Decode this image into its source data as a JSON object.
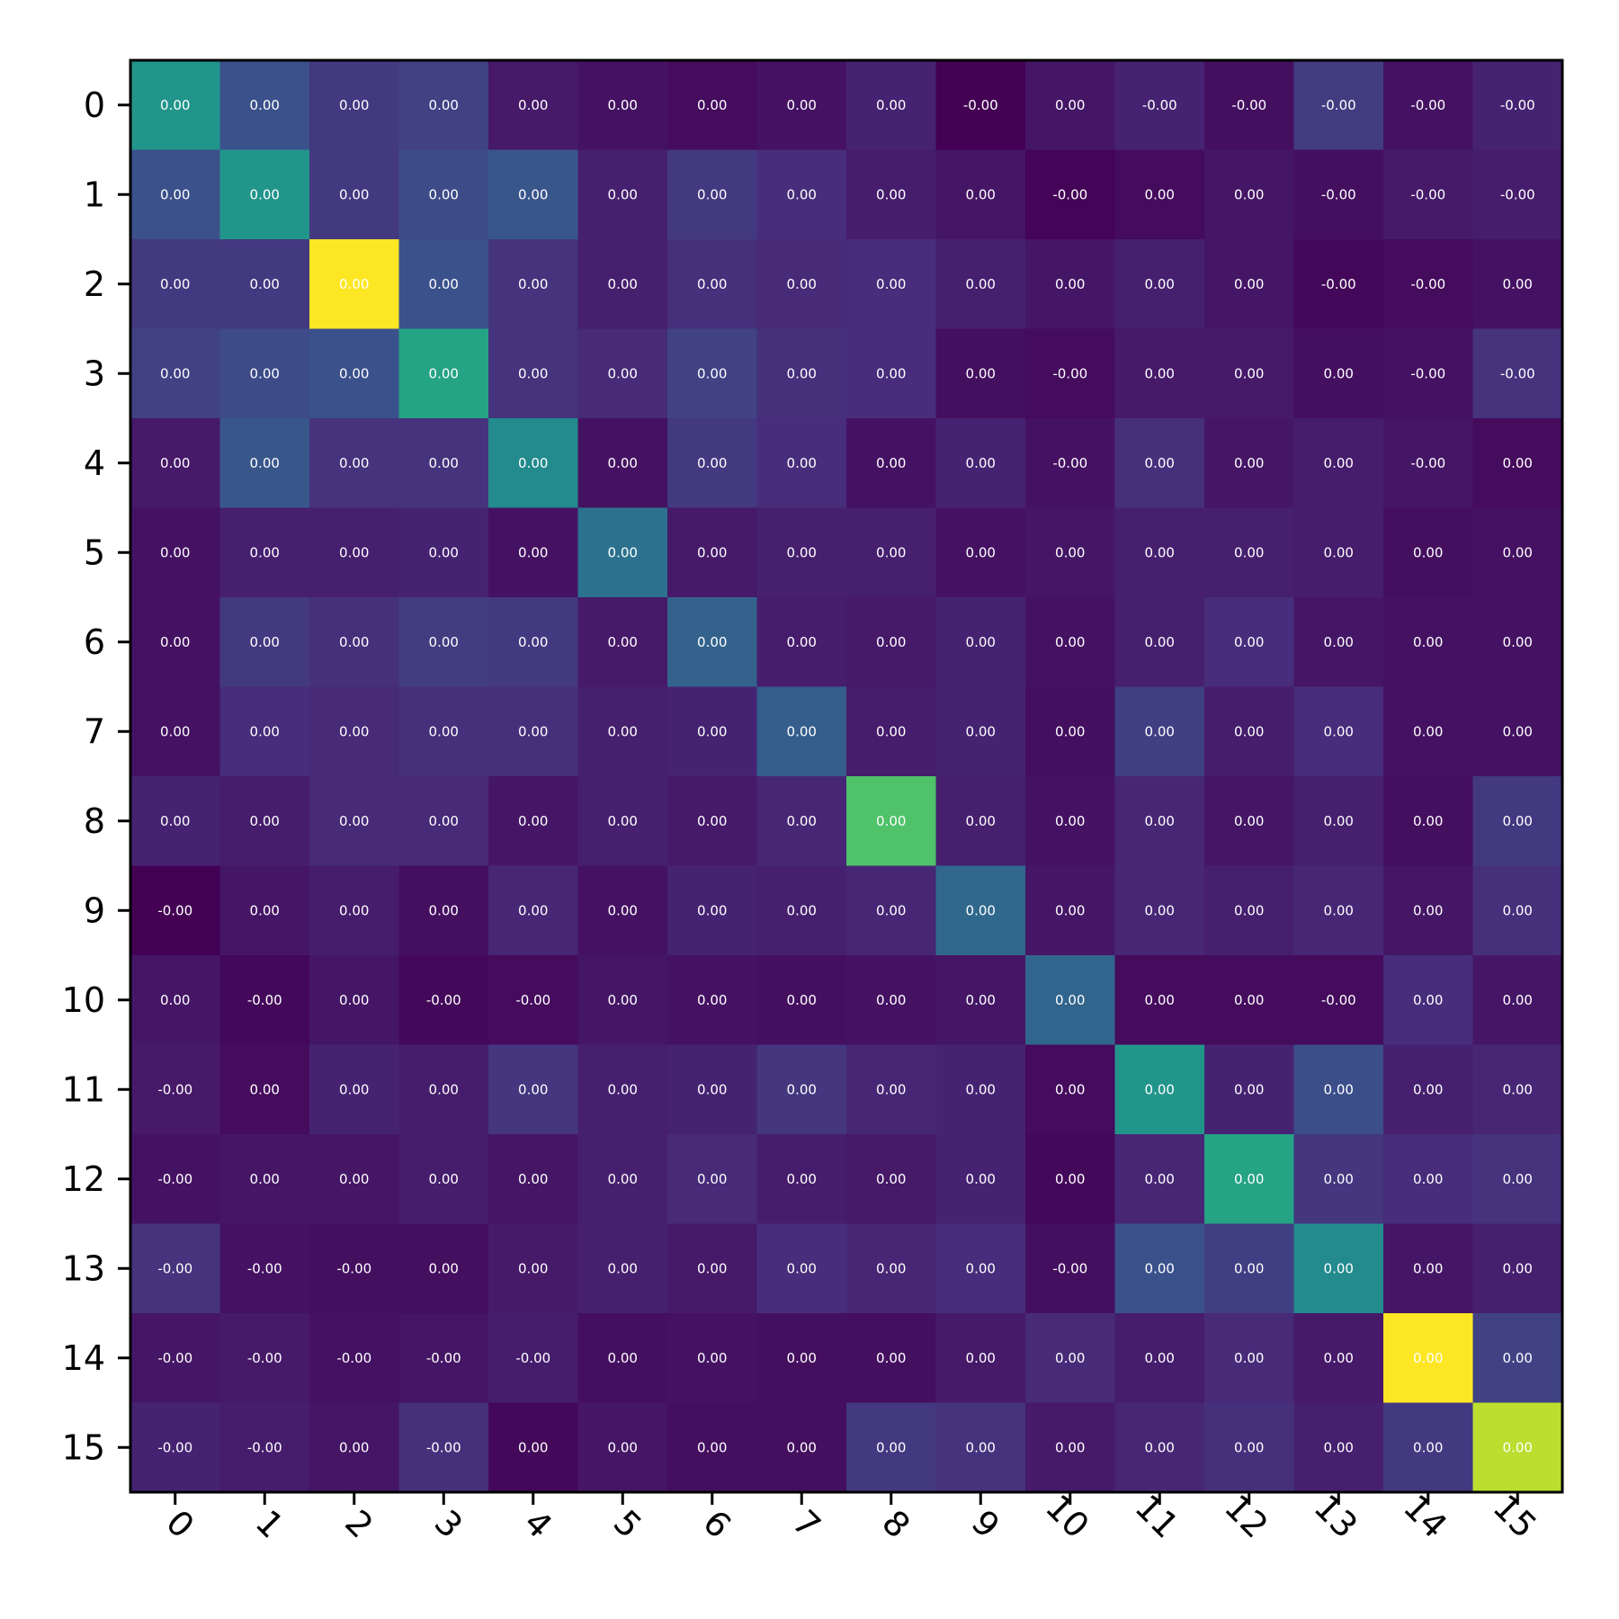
{
  "chart_data": {
    "type": "heatmap",
    "title": "",
    "xlabel": "",
    "ylabel": "",
    "x_ticks": [
      "0",
      "1",
      "2",
      "3",
      "4",
      "5",
      "6",
      "7",
      "8",
      "9",
      "10",
      "11",
      "12",
      "13",
      "14",
      "15"
    ],
    "y_ticks": [
      "0",
      "1",
      "2",
      "3",
      "4",
      "5",
      "6",
      "7",
      "8",
      "9",
      "10",
      "11",
      "12",
      "13",
      "14",
      "15"
    ],
    "x_tick_rotation": 45,
    "colormap": "viridis",
    "color_scale": [
      0,
      1
    ],
    "grid": false,
    "colorbar": false,
    "value_format": "0.00",
    "labels": [
      [
        "0.00",
        "0.00",
        "0.00",
        "0.00",
        "0.00",
        "0.00",
        "0.00",
        "0.00",
        "0.00",
        "-0.00",
        "0.00",
        "-0.00",
        "-0.00",
        "-0.00",
        "-0.00",
        "-0.00"
      ],
      [
        "0.00",
        "0.00",
        "0.00",
        "0.00",
        "0.00",
        "0.00",
        "0.00",
        "0.00",
        "0.00",
        "0.00",
        "-0.00",
        "0.00",
        "0.00",
        "-0.00",
        "-0.00",
        "-0.00"
      ],
      [
        "0.00",
        "0.00",
        "0.00",
        "0.00",
        "0.00",
        "0.00",
        "0.00",
        "0.00",
        "0.00",
        "0.00",
        "0.00",
        "0.00",
        "0.00",
        "-0.00",
        "-0.00",
        "0.00"
      ],
      [
        "0.00",
        "0.00",
        "0.00",
        "0.00",
        "0.00",
        "0.00",
        "0.00",
        "0.00",
        "0.00",
        "0.00",
        "-0.00",
        "0.00",
        "0.00",
        "0.00",
        "-0.00",
        "-0.00"
      ],
      [
        "0.00",
        "0.00",
        "0.00",
        "0.00",
        "0.00",
        "0.00",
        "0.00",
        "0.00",
        "0.00",
        "0.00",
        "-0.00",
        "0.00",
        "0.00",
        "0.00",
        "-0.00",
        "0.00"
      ],
      [
        "0.00",
        "0.00",
        "0.00",
        "0.00",
        "0.00",
        "0.00",
        "0.00",
        "0.00",
        "0.00",
        "0.00",
        "0.00",
        "0.00",
        "0.00",
        "0.00",
        "0.00",
        "0.00"
      ],
      [
        "0.00",
        "0.00",
        "0.00",
        "0.00",
        "0.00",
        "0.00",
        "0.00",
        "0.00",
        "0.00",
        "0.00",
        "0.00",
        "0.00",
        "0.00",
        "0.00",
        "0.00",
        "0.00"
      ],
      [
        "0.00",
        "0.00",
        "0.00",
        "0.00",
        "0.00",
        "0.00",
        "0.00",
        "0.00",
        "0.00",
        "0.00",
        "0.00",
        "0.00",
        "0.00",
        "0.00",
        "0.00",
        "0.00"
      ],
      [
        "0.00",
        "0.00",
        "0.00",
        "0.00",
        "0.00",
        "0.00",
        "0.00",
        "0.00",
        "0.00",
        "0.00",
        "0.00",
        "0.00",
        "0.00",
        "0.00",
        "0.00",
        "0.00"
      ],
      [
        "-0.00",
        "0.00",
        "0.00",
        "0.00",
        "0.00",
        "0.00",
        "0.00",
        "0.00",
        "0.00",
        "0.00",
        "0.00",
        "0.00",
        "0.00",
        "0.00",
        "0.00",
        "0.00"
      ],
      [
        "0.00",
        "-0.00",
        "0.00",
        "-0.00",
        "-0.00",
        "0.00",
        "0.00",
        "0.00",
        "0.00",
        "0.00",
        "0.00",
        "0.00",
        "0.00",
        "-0.00",
        "0.00",
        "0.00"
      ],
      [
        "-0.00",
        "0.00",
        "0.00",
        "0.00",
        "0.00",
        "0.00",
        "0.00",
        "0.00",
        "0.00",
        "0.00",
        "0.00",
        "0.00",
        "0.00",
        "0.00",
        "0.00",
        "0.00"
      ],
      [
        "-0.00",
        "0.00",
        "0.00",
        "0.00",
        "0.00",
        "0.00",
        "0.00",
        "0.00",
        "0.00",
        "0.00",
        "0.00",
        "0.00",
        "0.00",
        "0.00",
        "0.00",
        "0.00"
      ],
      [
        "-0.00",
        "-0.00",
        "-0.00",
        "0.00",
        "0.00",
        "0.00",
        "0.00",
        "0.00",
        "0.00",
        "0.00",
        "-0.00",
        "0.00",
        "0.00",
        "0.00",
        "0.00",
        "0.00"
      ],
      [
        "-0.00",
        "-0.00",
        "-0.00",
        "-0.00",
        "-0.00",
        "0.00",
        "0.00",
        "0.00",
        "0.00",
        "0.00",
        "0.00",
        "0.00",
        "0.00",
        "0.00",
        "0.00",
        "0.00"
      ],
      [
        "-0.00",
        "-0.00",
        "0.00",
        "-0.00",
        "0.00",
        "0.00",
        "0.00",
        "0.00",
        "0.00",
        "0.00",
        "0.00",
        "0.00",
        "0.00",
        "0.00",
        "0.00",
        "0.00"
      ]
    ],
    "values": [
      [
        0.52,
        0.25,
        0.17,
        0.2,
        0.07,
        0.05,
        0.03,
        0.05,
        0.1,
        0.0,
        0.06,
        0.1,
        0.04,
        0.18,
        0.05,
        0.1
      ],
      [
        0.25,
        0.52,
        0.17,
        0.23,
        0.27,
        0.09,
        0.17,
        0.13,
        0.08,
        0.06,
        0.01,
        0.03,
        0.06,
        0.04,
        0.07,
        0.08
      ],
      [
        0.17,
        0.17,
        1.0,
        0.25,
        0.15,
        0.09,
        0.14,
        0.12,
        0.13,
        0.09,
        0.06,
        0.09,
        0.06,
        0.02,
        0.03,
        0.05
      ],
      [
        0.2,
        0.23,
        0.25,
        0.58,
        0.15,
        0.12,
        0.2,
        0.14,
        0.13,
        0.04,
        0.03,
        0.07,
        0.07,
        0.04,
        0.05,
        0.15
      ],
      [
        0.07,
        0.27,
        0.15,
        0.15,
        0.48,
        0.05,
        0.17,
        0.13,
        0.05,
        0.1,
        0.05,
        0.14,
        0.06,
        0.08,
        0.06,
        0.03
      ],
      [
        0.05,
        0.09,
        0.09,
        0.1,
        0.05,
        0.38,
        0.07,
        0.09,
        0.09,
        0.05,
        0.06,
        0.09,
        0.09,
        0.08,
        0.04,
        0.05
      ],
      [
        0.05,
        0.17,
        0.14,
        0.18,
        0.17,
        0.07,
        0.32,
        0.08,
        0.07,
        0.1,
        0.05,
        0.09,
        0.13,
        0.06,
        0.05,
        0.05
      ],
      [
        0.05,
        0.13,
        0.12,
        0.14,
        0.14,
        0.09,
        0.1,
        0.3,
        0.08,
        0.1,
        0.04,
        0.19,
        0.08,
        0.13,
        0.05,
        0.05
      ],
      [
        0.1,
        0.08,
        0.12,
        0.12,
        0.06,
        0.09,
        0.07,
        0.11,
        0.72,
        0.09,
        0.05,
        0.11,
        0.06,
        0.09,
        0.04,
        0.17
      ],
      [
        0.0,
        0.06,
        0.08,
        0.04,
        0.11,
        0.05,
        0.1,
        0.09,
        0.11,
        0.34,
        0.06,
        0.11,
        0.09,
        0.11,
        0.06,
        0.14
      ],
      [
        0.06,
        0.02,
        0.06,
        0.02,
        0.03,
        0.06,
        0.05,
        0.04,
        0.05,
        0.06,
        0.33,
        0.03,
        0.03,
        0.03,
        0.13,
        0.06
      ],
      [
        0.07,
        0.03,
        0.1,
        0.08,
        0.16,
        0.09,
        0.1,
        0.16,
        0.11,
        0.1,
        0.03,
        0.52,
        0.1,
        0.24,
        0.09,
        0.11
      ],
      [
        0.05,
        0.06,
        0.06,
        0.08,
        0.06,
        0.09,
        0.12,
        0.08,
        0.07,
        0.1,
        0.02,
        0.11,
        0.58,
        0.16,
        0.13,
        0.15
      ],
      [
        0.15,
        0.05,
        0.04,
        0.04,
        0.07,
        0.09,
        0.07,
        0.13,
        0.11,
        0.13,
        0.04,
        0.25,
        0.19,
        0.48,
        0.06,
        0.09
      ],
      [
        0.06,
        0.07,
        0.05,
        0.06,
        0.08,
        0.04,
        0.05,
        0.04,
        0.04,
        0.07,
        0.12,
        0.08,
        0.12,
        0.07,
        1.0,
        0.2
      ],
      [
        0.1,
        0.08,
        0.06,
        0.14,
        0.02,
        0.06,
        0.04,
        0.04,
        0.17,
        0.15,
        0.07,
        0.11,
        0.14,
        0.09,
        0.17,
        0.9
      ]
    ]
  }
}
